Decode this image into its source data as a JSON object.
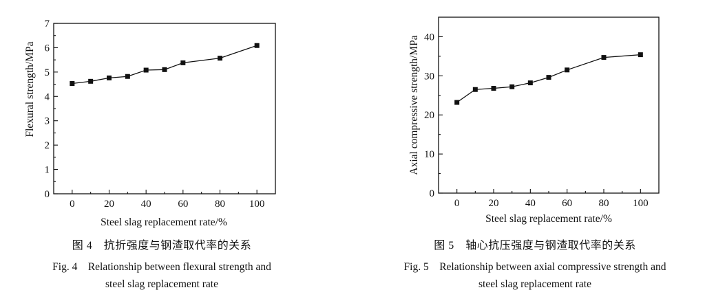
{
  "chart_data": [
    {
      "type": "line",
      "xlabel": "Steel slag replacement rate/%",
      "ylabel": "Flexural strength/MPa",
      "xlim": [
        -10,
        110
      ],
      "ylim": [
        0,
        7
      ],
      "xticks": [
        0,
        20,
        40,
        60,
        80,
        100
      ],
      "yticks": [
        0,
        1,
        2,
        3,
        4,
        5,
        6,
        7
      ],
      "x": [
        0,
        10,
        20,
        30,
        40,
        50,
        60,
        80,
        100
      ],
      "series": [
        {
          "values": [
            4.53,
            4.62,
            4.76,
            4.82,
            5.08,
            5.1,
            5.38,
            5.57,
            6.09
          ]
        }
      ],
      "grid": false,
      "marker": "square"
    },
    {
      "type": "line",
      "xlabel": "Steel slag replacement rate/%",
      "ylabel": "Axial compressive strength/MPa",
      "xlim": [
        -10,
        110
      ],
      "ylim": [
        0,
        45
      ],
      "xticks": [
        0,
        20,
        40,
        60,
        80,
        100
      ],
      "yticks": [
        0,
        10,
        20,
        30,
        40
      ],
      "x": [
        0,
        10,
        20,
        30,
        40,
        50,
        60,
        80,
        100
      ],
      "series": [
        {
          "values": [
            23.2,
            26.5,
            26.8,
            27.2,
            28.2,
            29.6,
            31.5,
            34.7,
            35.4
          ]
        }
      ],
      "grid": false,
      "marker": "square"
    }
  ],
  "captions": {
    "fig4": {
      "cn": "图 4　抗折强度与钢渣取代率的关系",
      "en_line1": "Fig. 4　Relationship between flexural strength and",
      "en_line2": "steel slag replacement rate"
    },
    "fig5": {
      "cn": "图 5　轴心抗压强度与钢渣取代率的关系",
      "en_line1": "Fig. 5　Relationship between axial compressive strength and",
      "en_line2": "steel slag replacement rate"
    }
  }
}
